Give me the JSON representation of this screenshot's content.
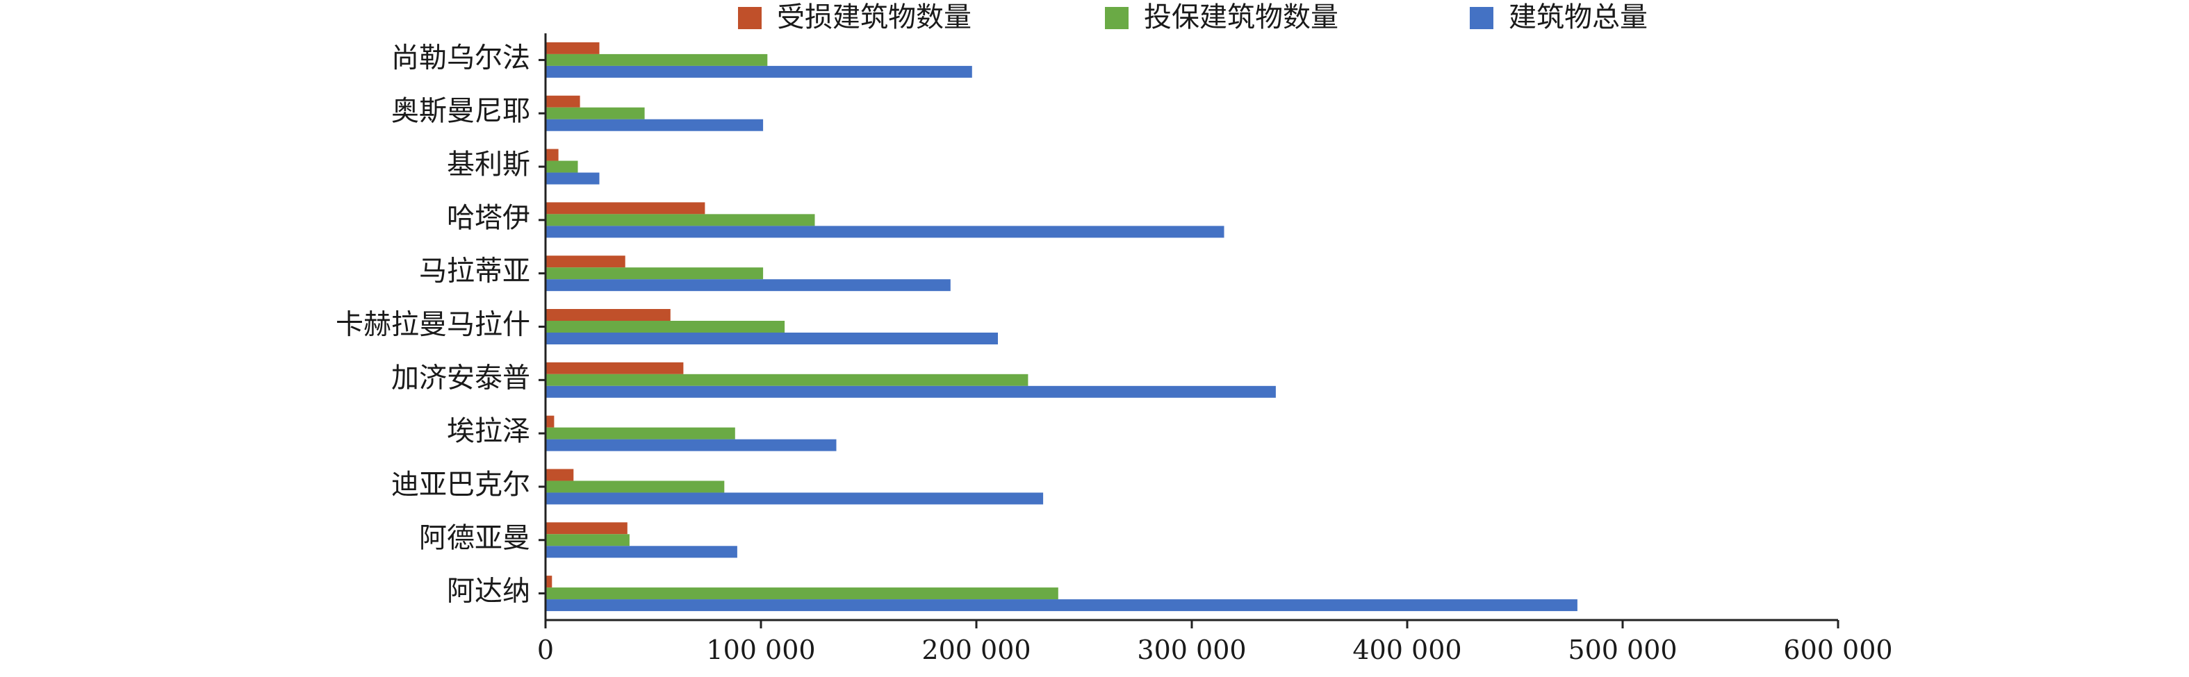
{
  "chart_data": {
    "type": "bar",
    "orientation": "horizontal",
    "title": "",
    "xlabel": "",
    "ylabel": "",
    "xlim": [
      0,
      600000
    ],
    "x_ticks": [
      0,
      100000,
      200000,
      300000,
      400000,
      500000,
      600000
    ],
    "x_tick_labels": [
      "0",
      "100 000",
      "200 000",
      "300 000",
      "400 000",
      "500 000",
      "600 000"
    ],
    "grid": false,
    "legend_position": "top",
    "categories": [
      "尚勒乌尔法",
      "奥斯曼尼耶",
      "基利斯",
      "哈塔伊",
      "马拉蒂亚",
      "卡赫拉曼马拉什",
      "加济安泰普",
      "埃拉泽",
      "迪亚巴克尔",
      "阿德亚曼",
      "阿达纳"
    ],
    "series": [
      {
        "name": "受损建筑物数量",
        "color": "#C0502A",
        "values": [
          25000,
          16000,
          6000,
          74000,
          37000,
          58000,
          64000,
          4000,
          13000,
          38000,
          3000
        ]
      },
      {
        "name": "投保建筑物数量",
        "color": "#6AAA45",
        "values": [
          103000,
          46000,
          15000,
          125000,
          101000,
          111000,
          224000,
          88000,
          83000,
          39000,
          238000
        ]
      },
      {
        "name": "建筑物总量",
        "color": "#4472C4",
        "values": [
          198000,
          101000,
          25000,
          315000,
          188000,
          210000,
          339000,
          135000,
          231000,
          89000,
          479000
        ]
      }
    ]
  }
}
